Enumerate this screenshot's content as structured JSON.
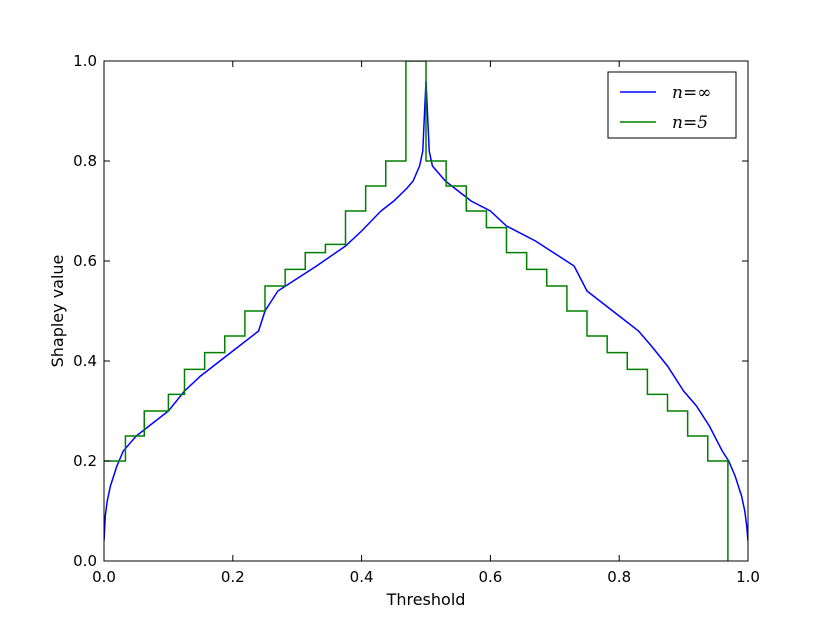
{
  "chart_data": {
    "type": "line",
    "title": "",
    "xlabel": "Threshold",
    "ylabel": "Shapley value",
    "xlim": [
      0.0,
      1.0
    ],
    "ylim": [
      0.0,
      1.0
    ],
    "xticks": [
      "0.0",
      "0.2",
      "0.4",
      "0.6",
      "0.8",
      "1.0"
    ],
    "yticks": [
      "0.0",
      "0.2",
      "0.4",
      "0.6",
      "0.8",
      "1.0"
    ],
    "grid": false,
    "legend_position": "top-right",
    "series": [
      {
        "name": "n=∞",
        "legend_label": "n=∞",
        "color": "#0000ff",
        "style": "smooth",
        "x": [
          0.0,
          0.002,
          0.005,
          0.01,
          0.02,
          0.03,
          0.05,
          0.08,
          0.1,
          0.125,
          0.15,
          0.2,
          0.24,
          0.25,
          0.27,
          0.3,
          0.33,
          0.375,
          0.4,
          0.43,
          0.45,
          0.47,
          0.48,
          0.49,
          0.495,
          0.5,
          0.505,
          0.51,
          0.52,
          0.53,
          0.55,
          0.57,
          0.6,
          0.625,
          0.67,
          0.7,
          0.73,
          0.75,
          0.8,
          0.83,
          0.85,
          0.875,
          0.9,
          0.92,
          0.94,
          0.96,
          0.97,
          0.98,
          0.99,
          0.995,
          0.998,
          1.0
        ],
        "y": [
          0.04,
          0.09,
          0.12,
          0.15,
          0.19,
          0.22,
          0.25,
          0.28,
          0.3,
          0.34,
          0.37,
          0.42,
          0.46,
          0.5,
          0.54,
          0.565,
          0.59,
          0.63,
          0.66,
          0.7,
          0.72,
          0.745,
          0.76,
          0.79,
          0.82,
          0.96,
          0.82,
          0.79,
          0.775,
          0.76,
          0.74,
          0.72,
          0.7,
          0.67,
          0.64,
          0.615,
          0.59,
          0.54,
          0.49,
          0.46,
          0.43,
          0.39,
          0.34,
          0.31,
          0.27,
          0.22,
          0.2,
          0.17,
          0.13,
          0.1,
          0.07,
          0.04
        ]
      },
      {
        "name": "n=5",
        "legend_label": "n=5",
        "color": "#008000",
        "style": "step",
        "steps": [
          {
            "x0": 0.0,
            "x1": 0.0333,
            "y": 0.2
          },
          {
            "x0": 0.0333,
            "x1": 0.0625,
            "y": 0.25
          },
          {
            "x0": 0.0625,
            "x1": 0.1,
            "y": 0.3
          },
          {
            "x0": 0.1,
            "x1": 0.125,
            "y": 0.3333
          },
          {
            "x0": 0.125,
            "x1": 0.1563,
            "y": 0.3833
          },
          {
            "x0": 0.1563,
            "x1": 0.1875,
            "y": 0.4167
          },
          {
            "x0": 0.1875,
            "x1": 0.2188,
            "y": 0.45
          },
          {
            "x0": 0.2188,
            "x1": 0.25,
            "y": 0.5
          },
          {
            "x0": 0.25,
            "x1": 0.2813,
            "y": 0.55
          },
          {
            "x0": 0.2813,
            "x1": 0.3125,
            "y": 0.5833
          },
          {
            "x0": 0.3125,
            "x1": 0.3438,
            "y": 0.6167
          },
          {
            "x0": 0.3438,
            "x1": 0.375,
            "y": 0.6333
          },
          {
            "x0": 0.375,
            "x1": 0.4063,
            "y": 0.7
          },
          {
            "x0": 0.4063,
            "x1": 0.4375,
            "y": 0.75
          },
          {
            "x0": 0.4375,
            "x1": 0.4688,
            "y": 0.8
          },
          {
            "x0": 0.4688,
            "x1": 0.5,
            "y": 1.0
          },
          {
            "x0": 0.5,
            "x1": 0.5313,
            "y": 0.8
          },
          {
            "x0": 0.5313,
            "x1": 0.5625,
            "y": 0.75
          },
          {
            "x0": 0.5625,
            "x1": 0.5938,
            "y": 0.7
          },
          {
            "x0": 0.5938,
            "x1": 0.625,
            "y": 0.6667
          },
          {
            "x0": 0.625,
            "x1": 0.6563,
            "y": 0.6167
          },
          {
            "x0": 0.6563,
            "x1": 0.6875,
            "y": 0.5833
          },
          {
            "x0": 0.6875,
            "x1": 0.7188,
            "y": 0.55
          },
          {
            "x0": 0.7188,
            "x1": 0.75,
            "y": 0.5
          },
          {
            "x0": 0.75,
            "x1": 0.7813,
            "y": 0.45
          },
          {
            "x0": 0.7813,
            "x1": 0.8125,
            "y": 0.4167
          },
          {
            "x0": 0.8125,
            "x1": 0.8438,
            "y": 0.3833
          },
          {
            "x0": 0.8438,
            "x1": 0.875,
            "y": 0.3333
          },
          {
            "x0": 0.875,
            "x1": 0.9063,
            "y": 0.3
          },
          {
            "x0": 0.9063,
            "x1": 0.9375,
            "y": 0.25
          },
          {
            "x0": 0.9375,
            "x1": 0.9688,
            "y": 0.2
          },
          {
            "x0": 0.9688,
            "x1": 0.9688,
            "y": 0.0
          }
        ]
      }
    ]
  }
}
